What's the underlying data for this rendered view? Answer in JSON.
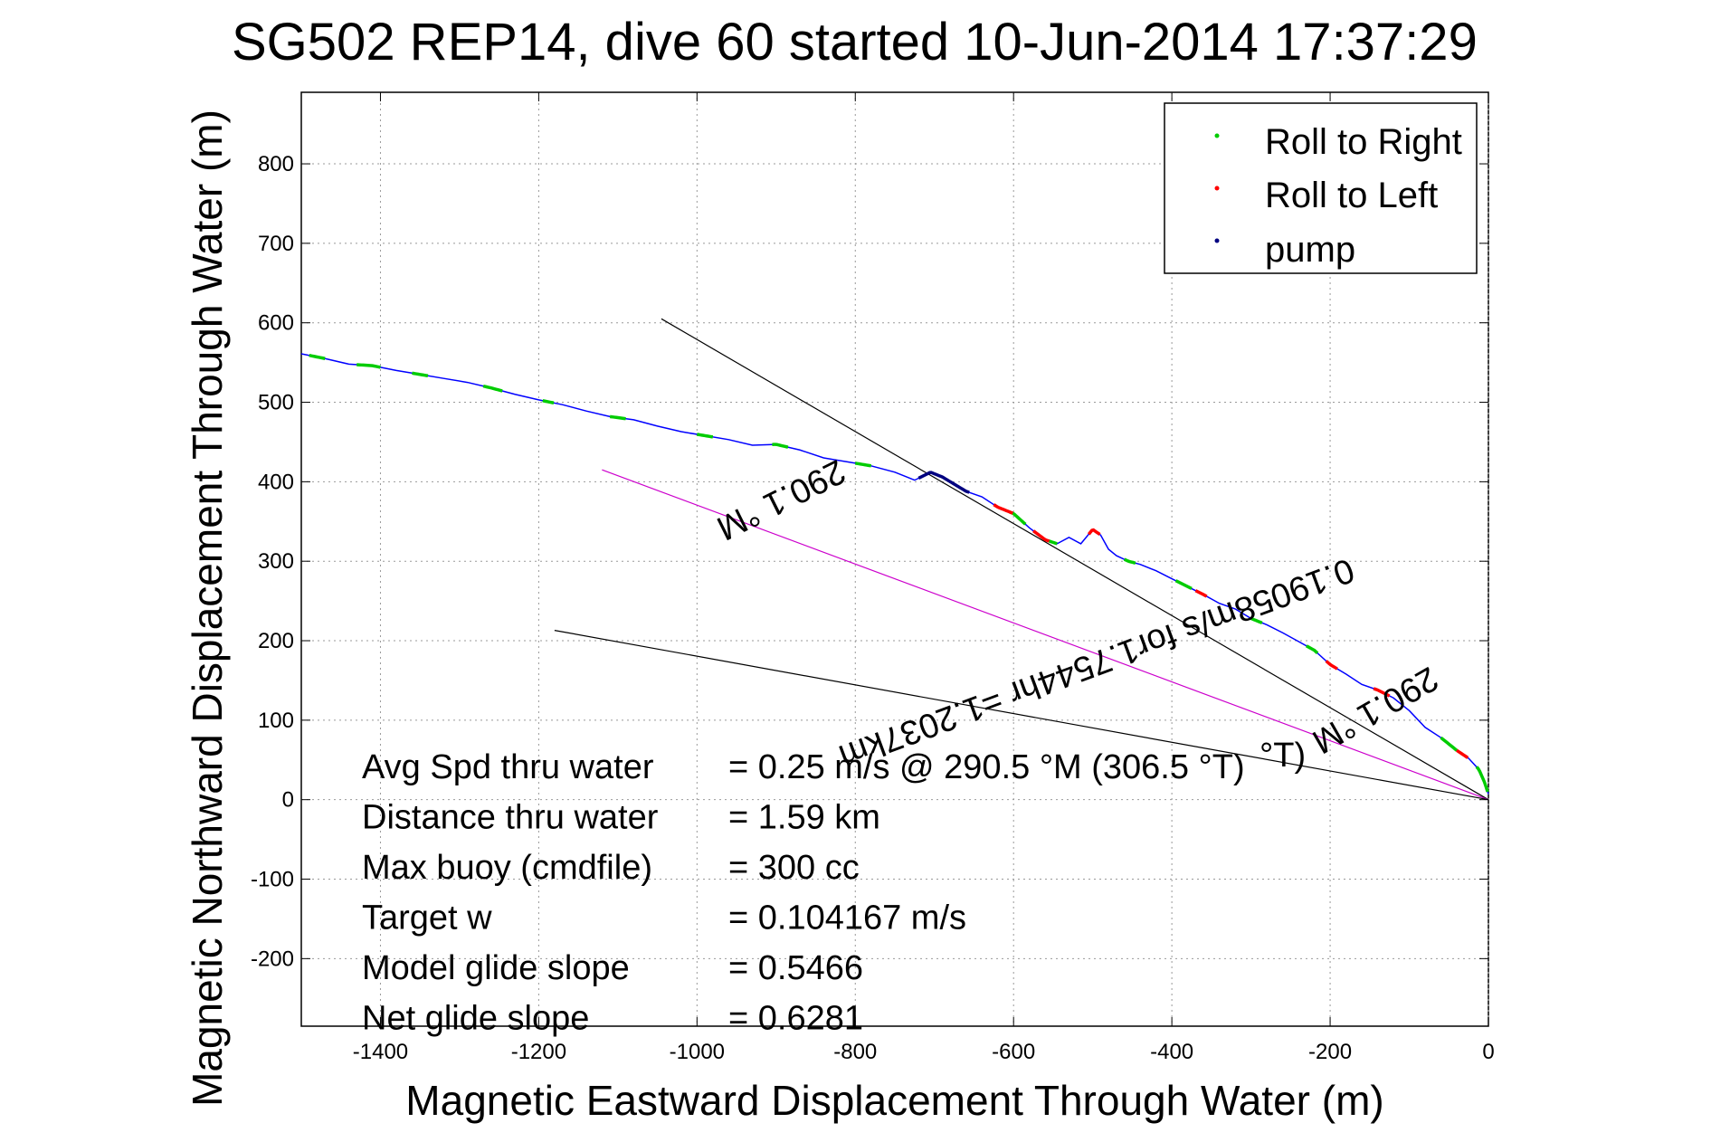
{
  "chart_data": {
    "type": "line",
    "title": "SG502 REP14, dive 60 started 10-Jun-2014 17:37:29",
    "xlabel": "Magnetic Eastward Displacement Through Water (m)",
    "ylabel": "Magnetic Northward Displacement Through Water (m)",
    "xlim": [
      -1500,
      0
    ],
    "ylim": [
      -285,
      890
    ],
    "xticks": [
      -1400,
      -1200,
      -1000,
      -800,
      -600,
      -400,
      -200,
      0
    ],
    "yticks": [
      -200,
      -100,
      0,
      100,
      200,
      300,
      400,
      500,
      600,
      700,
      800
    ],
    "grid": true,
    "legend_position": "top-right",
    "legend": [
      {
        "label": "Roll to Right",
        "color": "#00cc00"
      },
      {
        "label": "Roll to Left",
        "color": "#ff0000"
      },
      {
        "label": "pump",
        "color": "#000080"
      }
    ],
    "track": {
      "color": "#0000ff",
      "x": [
        -1500,
        -1470,
        -1440,
        -1410,
        -1380,
        -1350,
        -1320,
        -1290,
        -1260,
        -1230,
        -1200,
        -1170,
        -1140,
        -1110,
        -1080,
        -1050,
        -1020,
        -990,
        -960,
        -930,
        -900,
        -870,
        -840,
        -810,
        -780,
        -750,
        -725,
        -705,
        -690,
        -675,
        -660,
        -640,
        -620,
        -600,
        -580,
        -560,
        -545,
        -530,
        -515,
        -500,
        -490,
        -480,
        -470,
        -455,
        -440,
        -420,
        -400,
        -380,
        -360,
        -340,
        -320,
        -300,
        -280,
        -260,
        -240,
        -220,
        -200,
        -180,
        -160,
        -140,
        -120,
        -100,
        -80,
        -60,
        -40,
        -25,
        -12,
        -5,
        0
      ],
      "y": [
        561,
        555,
        548,
        546,
        540,
        535,
        530,
        525,
        518,
        510,
        503,
        497,
        489,
        482,
        478,
        470,
        463,
        458,
        453,
        446,
        447,
        440,
        430,
        425,
        420,
        412,
        402,
        412,
        406,
        397,
        388,
        381,
        368,
        360,
        342,
        327,
        322,
        330,
        322,
        340,
        333,
        315,
        307,
        300,
        296,
        288,
        278,
        268,
        258,
        247,
        240,
        228,
        220,
        210,
        199,
        188,
        170,
        158,
        145,
        138,
        128,
        112,
        91,
        78,
        62,
        52,
        38,
        22,
        7
      ]
    },
    "roll_right_segments": [
      [
        -1490,
        -1470
      ],
      [
        -1430,
        -1400
      ],
      [
        -1360,
        -1340
      ],
      [
        -1270,
        -1245
      ],
      [
        -1195,
        -1180
      ],
      [
        -1110,
        -1090
      ],
      [
        -1000,
        -980
      ],
      [
        -905,
        -885
      ],
      [
        -800,
        -780
      ],
      [
        -605,
        -585
      ],
      [
        -555,
        -545
      ],
      [
        -460,
        -445
      ],
      [
        -395,
        -375
      ],
      [
        -300,
        -285
      ],
      [
        -230,
        -215
      ],
      [
        -60,
        -40
      ],
      [
        -15,
        0
      ]
    ],
    "roll_left_segments": [
      [
        -625,
        -600
      ],
      [
        -575,
        -555
      ],
      [
        -505,
        -490
      ],
      [
        -370,
        -355
      ],
      [
        -205,
        -190
      ],
      [
        -145,
        -125
      ],
      [
        -40,
        -25
      ]
    ],
    "pump_segment": [
      -720,
      -655
    ],
    "reference_lines": [
      {
        "from": [
          -1045,
          605
        ],
        "to": [
          0,
          0
        ],
        "color": "#000000"
      },
      {
        "from": [
          -1120,
          415
        ],
        "to": [
          0,
          0
        ],
        "color": "#cc00cc"
      },
      {
        "from": [
          -1180,
          213
        ],
        "to": [
          0,
          0
        ],
        "color": "#000000"
      }
    ],
    "annotations": [
      {
        "text": "290.1 °M",
        "x": -900,
        "y": 390,
        "rotation": 153.5
      },
      {
        "text": "0.19058m/s for1.7544hr =1.2037km",
        "x": -500,
        "y": 185,
        "rotation": 159.7
      },
      {
        "text": "290.1 °M",
        "x": -150,
        "y": 125,
        "rotation": 150.1
      },
      {
        "text": "°T)",
        "x": -260,
        "y": 42,
        "rotation": 0
      }
    ],
    "stats": [
      {
        "label": "Avg Spd thru water",
        "value": "=  0.25 m/s @ 290.5 °M (306.5 °T)"
      },
      {
        "label": "Distance thru water",
        "value": "=  1.59 km"
      },
      {
        "label": "Max buoy (cmdfile)",
        "value": "= 300 cc"
      },
      {
        "label": "Target w",
        "value": "= 0.104167 m/s"
      },
      {
        "label": "Model glide slope",
        "value": "= 0.5466"
      },
      {
        "label": "Net glide slope",
        "value": "= 0.6281"
      }
    ]
  }
}
